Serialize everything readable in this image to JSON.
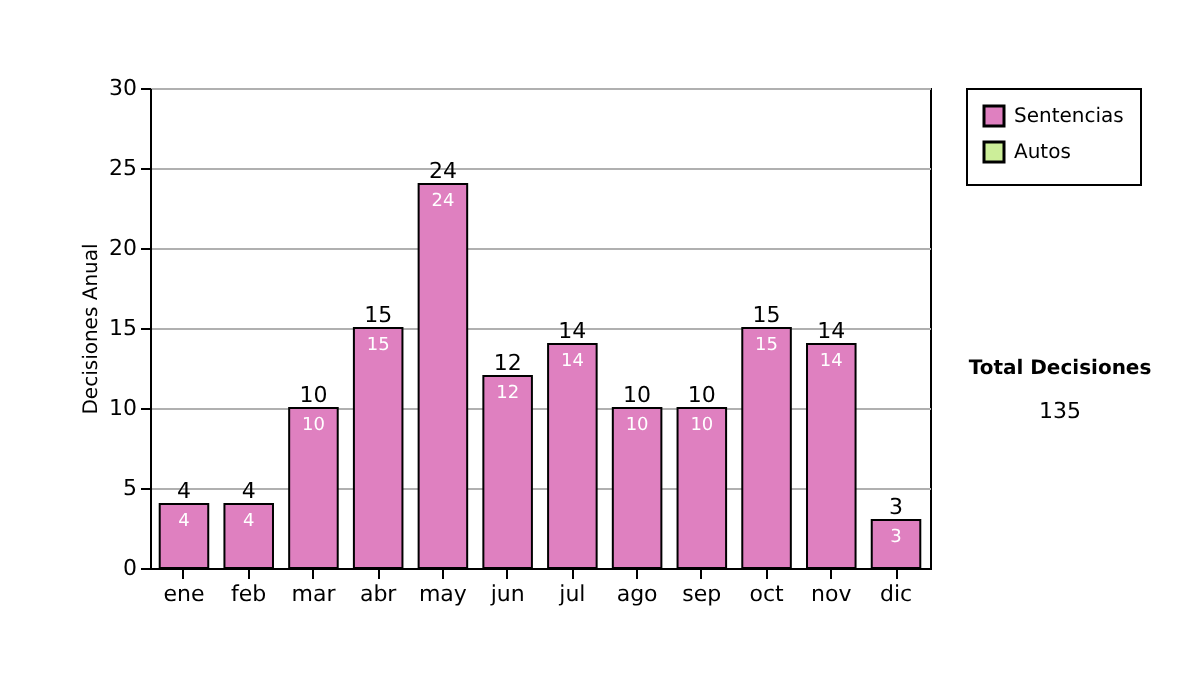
{
  "chart_data": {
    "type": "bar",
    "ylabel": "Decisiones Anual",
    "categories": [
      "ene",
      "feb",
      "mar",
      "abr",
      "may",
      "jun",
      "jul",
      "ago",
      "sep",
      "oct",
      "nov",
      "dic"
    ],
    "series": [
      {
        "name": "Sentencias",
        "color": "#df80c0",
        "values": [
          4,
          4,
          10,
          15,
          24,
          12,
          14,
          10,
          10,
          15,
          14,
          3
        ]
      },
      {
        "name": "Autos",
        "color": "#ccee99",
        "values": [
          null,
          null,
          null,
          null,
          null,
          null,
          null,
          null,
          null,
          null,
          null,
          null
        ]
      }
    ],
    "totals": [
      "4",
      "4",
      "10",
      "15",
      "24",
      "12",
      "14",
      "10",
      "10",
      "15",
      "14",
      "3"
    ],
    "data_labels": true,
    "ylim": [
      0,
      30
    ],
    "yticks": [
      0,
      5,
      10,
      15,
      20,
      25,
      30
    ],
    "grid": "y",
    "legend": "right",
    "annotations": [
      "Total Decisiones",
      "135"
    ]
  }
}
